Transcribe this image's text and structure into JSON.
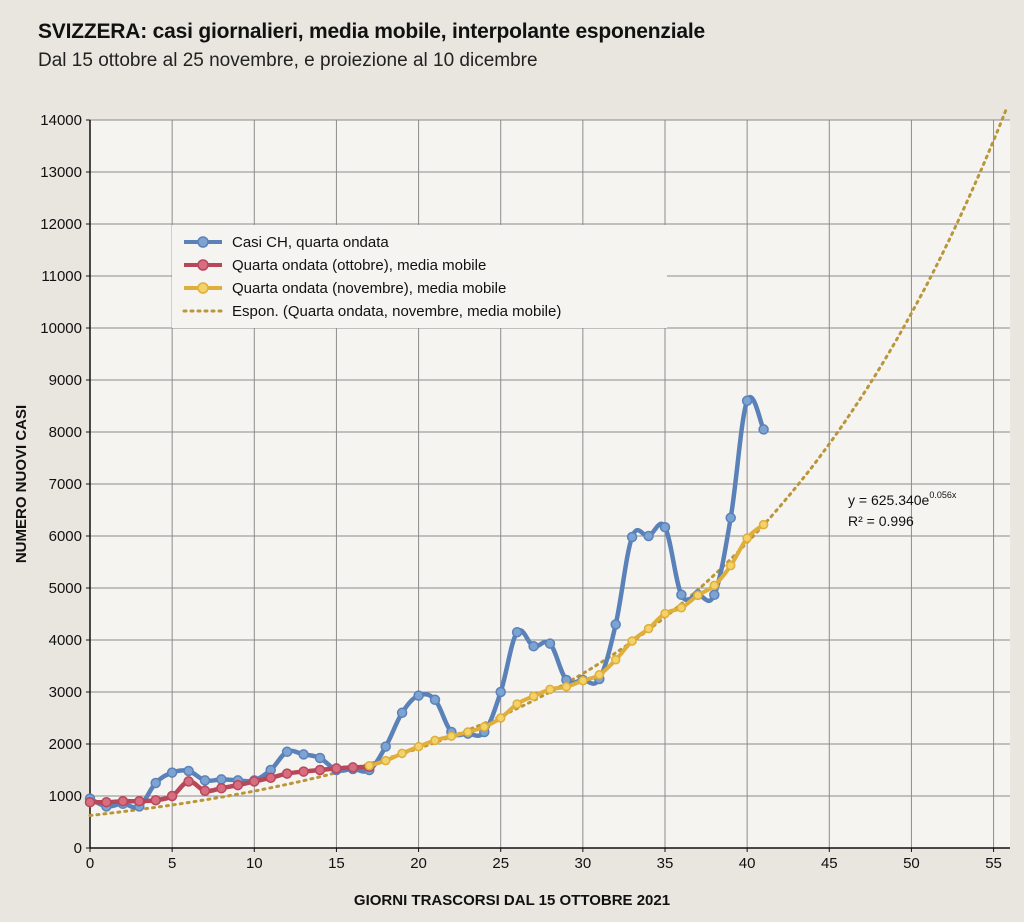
{
  "title": "SVIZZERA: casi giornalieri, media mobile, interpolante esponenziale",
  "subtitle": "Dal 15 ottobre al 25 novembre, e proiezione al 10 dicembre",
  "chart_data": {
    "type": "line",
    "title": "SVIZZERA: casi giornalieri, media mobile, interpolante esponenziale",
    "subtitle": "Dal 15 ottobre al 25 novembre, e proiezione al 10 dicembre",
    "xlabel": "GIORNI TRASCORSI DAL 15 OTTOBRE 2021",
    "ylabel": "NUMERO NUOVI CASI",
    "xlim": [
      0,
      56
    ],
    "ylim": [
      0,
      14000
    ],
    "xticks": [
      0,
      5,
      10,
      15,
      20,
      25,
      30,
      35,
      40,
      45,
      50,
      55
    ],
    "yticks": [
      0,
      1000,
      2000,
      3000,
      4000,
      5000,
      6000,
      7000,
      8000,
      9000,
      10000,
      11000,
      12000,
      13000,
      14000
    ],
    "grid": true,
    "legend_position": "upper-left",
    "series": [
      {
        "name": "Casi CH, quarta ondata",
        "color": "#5b82b8",
        "marker_fill": "#7da3d3",
        "x": [
          0,
          1,
          2,
          3,
          4,
          5,
          6,
          7,
          8,
          9,
          10,
          11,
          12,
          13,
          14,
          15,
          16,
          17,
          18,
          19,
          20,
          21,
          22,
          23,
          24,
          25,
          26,
          27,
          28,
          29,
          30,
          31,
          32,
          33,
          34,
          35,
          36,
          37,
          38,
          39,
          40,
          41
        ],
        "y": [
          950,
          800,
          850,
          800,
          1250,
          1450,
          1480,
          1300,
          1320,
          1300,
          1300,
          1500,
          1850,
          1800,
          1730,
          1500,
          1520,
          1500,
          1950,
          2600,
          2930,
          2850,
          2230,
          2200,
          2230,
          3000,
          4150,
          3880,
          3930,
          3230,
          3230,
          3250,
          4300,
          5980,
          6000,
          6170,
          4870,
          4870,
          4870,
          6350,
          8600,
          8050
        ]
      },
      {
        "name": "Quarta ondata (ottobre), media mobile",
        "color": "#b8475a",
        "marker_fill": "#d76d80",
        "x": [
          0,
          1,
          2,
          3,
          4,
          5,
          6,
          7,
          8,
          9,
          10,
          11,
          12,
          13,
          14,
          15,
          16,
          17
        ],
        "y": [
          880,
          880,
          900,
          900,
          920,
          1000,
          1280,
          1100,
          1150,
          1210,
          1280,
          1350,
          1430,
          1470,
          1500,
          1530,
          1550,
          1560
        ]
      },
      {
        "name": "Quarta ondata (novembre), media mobile",
        "color": "#e0ae3a",
        "marker_fill": "#f2d36a",
        "x": [
          17,
          18,
          19,
          20,
          21,
          22,
          23,
          24,
          25,
          26,
          27,
          28,
          29,
          30,
          31,
          32,
          33,
          34,
          35,
          36,
          37,
          38,
          39,
          40,
          41
        ],
        "y": [
          1580,
          1680,
          1820,
          1950,
          2070,
          2150,
          2230,
          2330,
          2500,
          2770,
          2920,
          3050,
          3100,
          3220,
          3330,
          3620,
          3980,
          4220,
          4510,
          4620,
          4860,
          5050,
          5430,
          5960,
          6220
        ]
      },
      {
        "name": "Espon. (Quarta ondata, novembre, media mobile)",
        "type": "trendline",
        "color": "#b9963a",
        "style": "dotted",
        "formula": {
          "a": 625.34,
          "b": 0.056
        },
        "x_range": [
          0,
          56
        ]
      }
    ],
    "annotation": {
      "equation_prefix": "y = 625.340e",
      "equation_exponent": "0.056x",
      "r2": "R² = 0.996"
    }
  }
}
